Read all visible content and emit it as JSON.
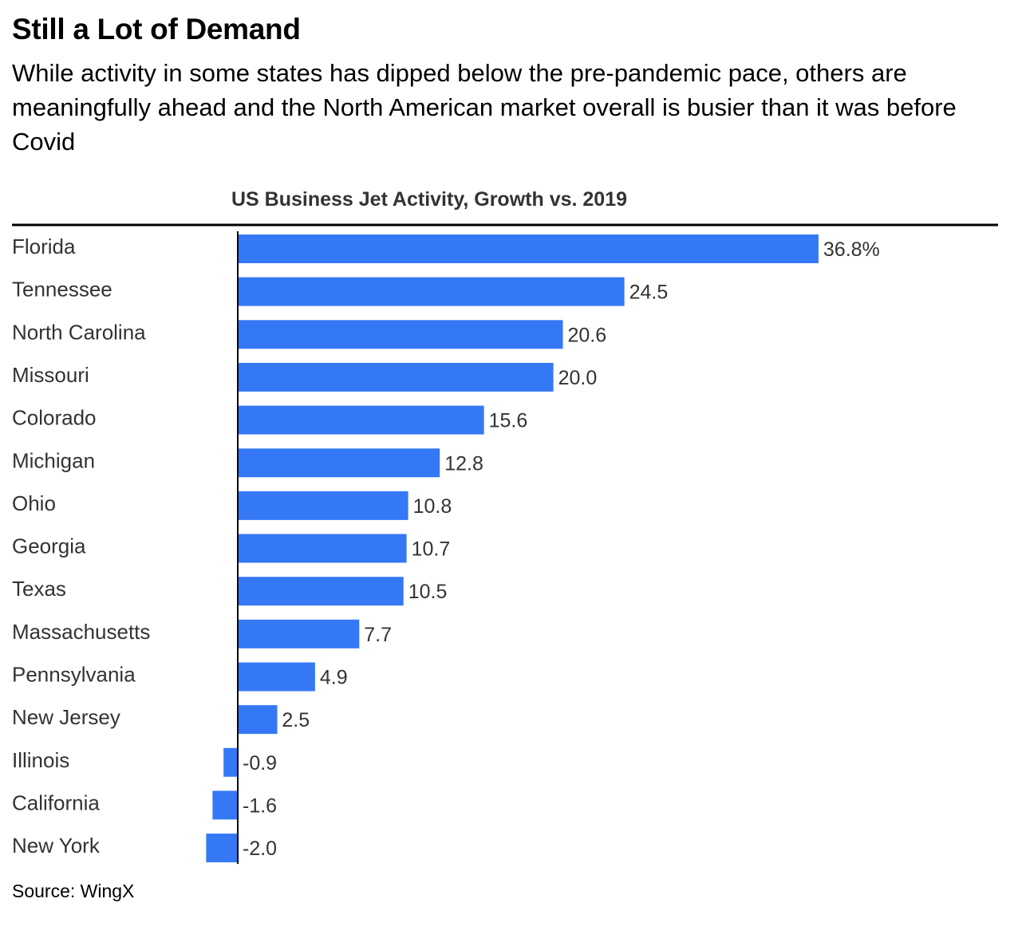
{
  "header": {
    "title": "Still a Lot of Demand",
    "subtitle": "While activity in some states has dipped below the pre-pandemic pace, others are meaningfully ahead and the North American market overall is busier than it was before Covid"
  },
  "footer": {
    "source": "Source: WingX"
  },
  "colors": {
    "bar": "#3478f6",
    "text": "#333333",
    "rule": "#000000"
  },
  "chart_data": {
    "type": "bar",
    "orientation": "horizontal",
    "title": "US Business Jet Activity, Growth vs. 2019",
    "xlabel": "",
    "ylabel": "",
    "unit": "%",
    "categories": [
      "Florida",
      "Tennessee",
      "North Carolina",
      "Missouri",
      "Colorado",
      "Michigan",
      "Ohio",
      "Georgia",
      "Texas",
      "Massachusetts",
      "Pennsylvania",
      "New Jersey",
      "Illinois",
      "California",
      "New York"
    ],
    "values": [
      36.8,
      24.5,
      20.6,
      20.0,
      15.6,
      12.8,
      10.8,
      10.7,
      10.5,
      7.7,
      4.9,
      2.5,
      -0.9,
      -1.6,
      -2.0
    ],
    "data_labels": [
      "36.8%",
      "24.5",
      "20.6",
      "20.0",
      "15.6",
      "12.8",
      "10.8",
      "10.7",
      "10.5",
      "7.7",
      "4.9",
      "2.5",
      "-0.9",
      "-1.6",
      "-2.0"
    ],
    "grid": false,
    "legend": "none"
  }
}
